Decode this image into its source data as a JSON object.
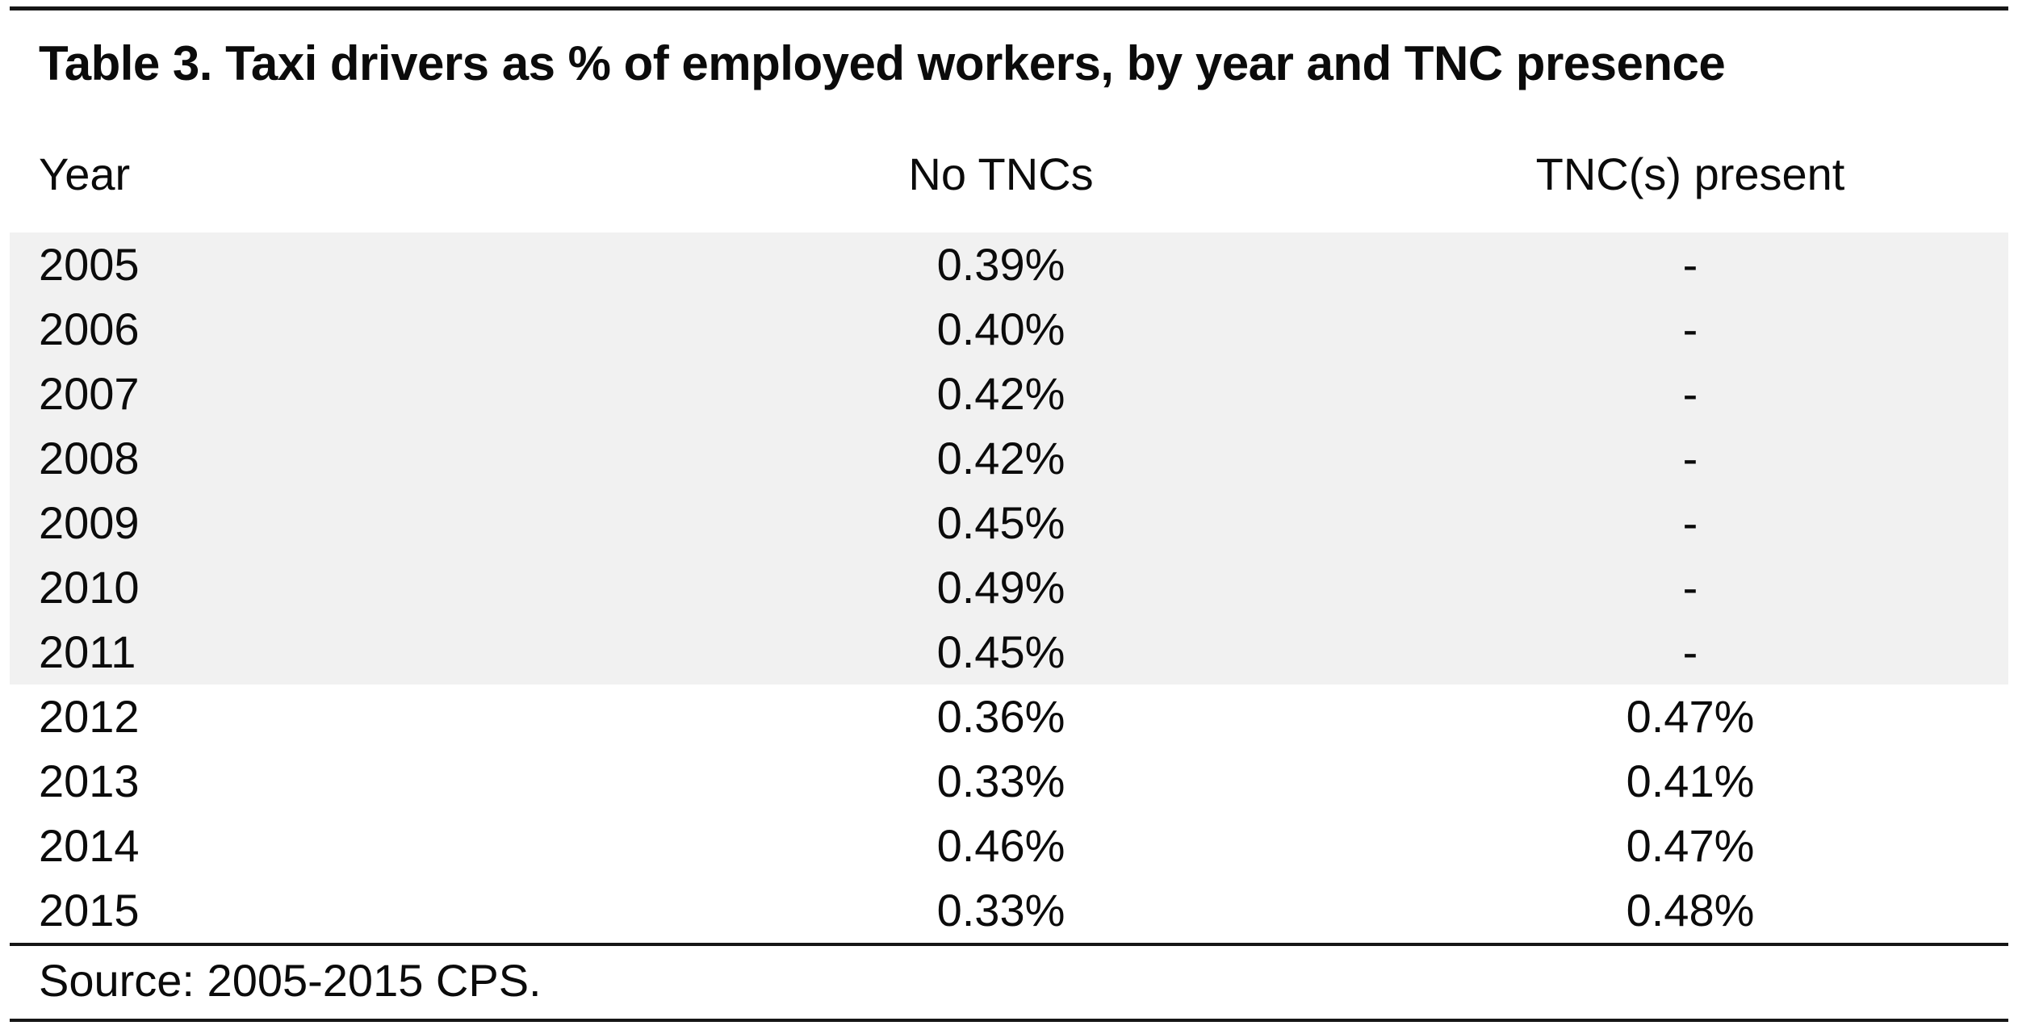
{
  "table": {
    "title": "Table 3. Taxi drivers as % of employed workers, by year and TNC presence",
    "columns": [
      "Year",
      "No TNCs",
      "TNC(s) present"
    ],
    "rows": [
      {
        "year": "2005",
        "no_tnc": "0.39%",
        "tnc": "-",
        "shaded": true
      },
      {
        "year": "2006",
        "no_tnc": "0.40%",
        "tnc": "-",
        "shaded": true
      },
      {
        "year": "2007",
        "no_tnc": "0.42%",
        "tnc": "-",
        "shaded": true
      },
      {
        "year": "2008",
        "no_tnc": "0.42%",
        "tnc": "-",
        "shaded": true
      },
      {
        "year": "2009",
        "no_tnc": "0.45%",
        "tnc": "-",
        "shaded": true
      },
      {
        "year": "2010",
        "no_tnc": "0.49%",
        "tnc": "-",
        "shaded": true
      },
      {
        "year": "2011",
        "no_tnc": "0.45%",
        "tnc": "-",
        "shaded": true
      },
      {
        "year": "2012",
        "no_tnc": "0.36%",
        "tnc": "0.47%",
        "shaded": false
      },
      {
        "year": "2013",
        "no_tnc": "0.33%",
        "tnc": "0.41%",
        "shaded": false
      },
      {
        "year": "2014",
        "no_tnc": "0.46%",
        "tnc": "0.47%",
        "shaded": false
      },
      {
        "year": "2015",
        "no_tnc": "0.33%",
        "tnc": "0.48%",
        "shaded": false
      }
    ],
    "source": "Source: 2005-2015 CPS."
  },
  "colors": {
    "shaded_row": "#f1f1f1",
    "rule": "#161616",
    "text": "#0b0b0b",
    "background": "#ffffff"
  },
  "chart_data": {
    "type": "table",
    "title": "Table 3. Taxi drivers as % of employed workers, by year and TNC presence",
    "categories": [
      "2005",
      "2006",
      "2007",
      "2008",
      "2009",
      "2010",
      "2011",
      "2012",
      "2013",
      "2014",
      "2015"
    ],
    "series": [
      {
        "name": "No TNCs",
        "values": [
          0.39,
          0.4,
          0.42,
          0.42,
          0.45,
          0.49,
          0.45,
          0.36,
          0.33,
          0.46,
          0.33
        ]
      },
      {
        "name": "TNC(s) present",
        "values": [
          null,
          null,
          null,
          null,
          null,
          null,
          null,
          0.47,
          0.41,
          0.47,
          0.48
        ]
      }
    ],
    "value_unit": "%",
    "source": "Source: 2005-2015 CPS."
  }
}
